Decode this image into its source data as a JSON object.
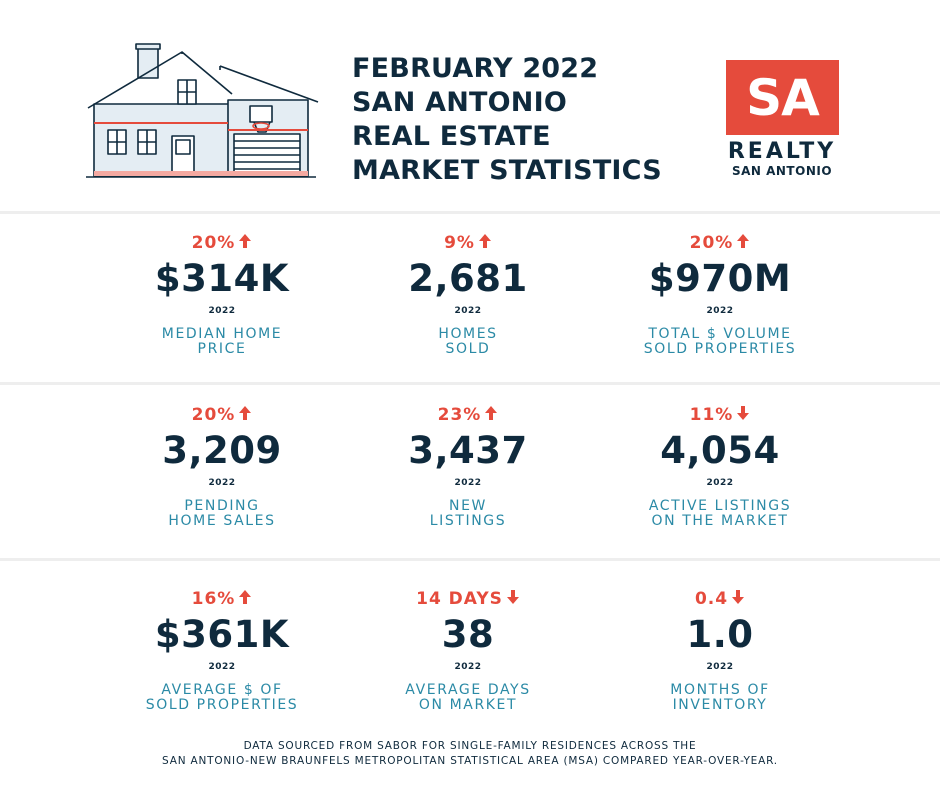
{
  "header": {
    "title_lines": [
      "FEBRUARY 2022",
      "SAN ANTONIO",
      "REAL ESTATE",
      "MARKET STATISTICS"
    ],
    "logo": {
      "mark": "SA",
      "realty": "REALTY",
      "sub": "SAN ANTONIO"
    }
  },
  "colors": {
    "accent": "#e54b3c",
    "navy": "#0f2a3d",
    "teal": "#2b8aa6"
  },
  "stats": [
    {
      "change": "20%",
      "direction": "up",
      "value": "$314K",
      "year": "2022",
      "label": "MEDIAN HOME\nPRICE"
    },
    {
      "change": "9%",
      "direction": "up",
      "value": "2,681",
      "year": "2022",
      "label": "HOMES\nSOLD"
    },
    {
      "change": "20%",
      "direction": "up",
      "value": "$970M",
      "year": "2022",
      "label": "TOTAL $ VOLUME\nSOLD PROPERTIES"
    },
    {
      "change": "20%",
      "direction": "up",
      "value": "3,209",
      "year": "2022",
      "label": "PENDING\nHOME SALES"
    },
    {
      "change": "23%",
      "direction": "up",
      "value": "3,437",
      "year": "2022",
      "label": "NEW\nLISTINGS"
    },
    {
      "change": "11%",
      "direction": "down",
      "value": "4,054",
      "year": "2022",
      "label": "ACTIVE LISTINGS\nON THE MARKET"
    },
    {
      "change": "16%",
      "direction": "up",
      "value": "$361K",
      "year": "2022",
      "label": "AVERAGE $ OF\nSOLD PROPERTIES"
    },
    {
      "change": "14 DAYS",
      "direction": "down",
      "value": "38",
      "year": "2022",
      "label": "AVERAGE DAYS\nON MARKET"
    },
    {
      "change": "0.4",
      "direction": "down",
      "value": "1.0",
      "year": "2022",
      "label": "MONTHS OF\nINVENTORY"
    }
  ],
  "footer": {
    "line1": "DATA SOURCED FROM SABOR FOR SINGLE-FAMILY RESIDENCES ACROSS THE",
    "line2": "SAN ANTONIO-NEW BRAUNFELS METROPOLITAN STATISTICAL AREA (MSA) COMPARED YEAR-OVER-YEAR."
  }
}
